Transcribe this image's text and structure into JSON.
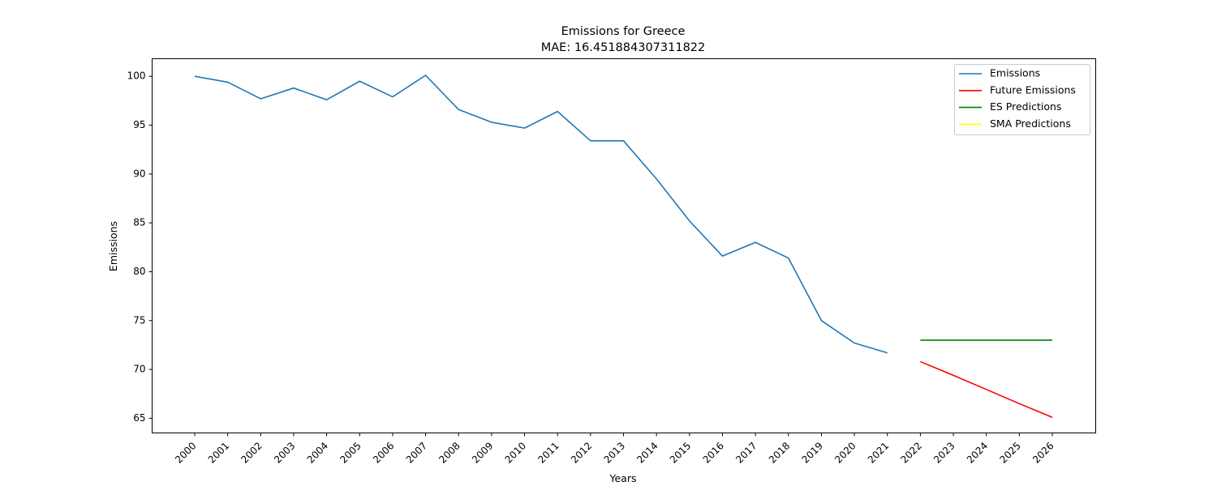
{
  "chart_data": {
    "type": "line",
    "title": "Emissions for Greece",
    "subtitle": "MAE: 16.451884307311822",
    "xlabel": "Years",
    "ylabel": "Emissions",
    "categories": [
      "2000",
      "2001",
      "2002",
      "2003",
      "2004",
      "2005",
      "2006",
      "2007",
      "2008",
      "2009",
      "2010",
      "2011",
      "2012",
      "2013",
      "2014",
      "2015",
      "2016",
      "2017",
      "2018",
      "2019",
      "2020",
      "2021",
      "2022",
      "2023",
      "2024",
      "2025",
      "2026"
    ],
    "ylim": [
      63.5,
      101.8
    ],
    "yticks": [
      65,
      70,
      75,
      80,
      85,
      90,
      95,
      100
    ],
    "grid": false,
    "legend_position": "top-right",
    "series": [
      {
        "name": "Emissions",
        "color": "#1f77b4",
        "x": [
          "2000",
          "2001",
          "2002",
          "2003",
          "2004",
          "2005",
          "2006",
          "2007",
          "2008",
          "2009",
          "2010",
          "2011",
          "2012",
          "2013",
          "2014",
          "2015",
          "2016",
          "2017",
          "2018",
          "2019",
          "2020",
          "2021"
        ],
        "values": [
          100.0,
          99.4,
          97.7,
          98.8,
          97.6,
          99.5,
          97.9,
          100.1,
          96.6,
          95.3,
          94.7,
          96.4,
          93.4,
          93.4,
          89.5,
          85.2,
          81.6,
          83.0,
          81.4,
          75.0,
          72.7,
          71.7
        ]
      },
      {
        "name": "Future Emissions",
        "color": "#ff0000",
        "x": [
          "2022",
          "2023",
          "2024",
          "2025",
          "2026"
        ],
        "values": [
          70.8,
          69.4,
          67.95,
          66.5,
          65.1
        ]
      },
      {
        "name": "ES Predictions",
        "color": "#008000",
        "x": [
          "2022",
          "2023",
          "2024",
          "2025",
          "2026"
        ],
        "values": [
          73.0,
          73.0,
          73.0,
          73.0,
          73.0
        ]
      },
      {
        "name": "SMA Predictions",
        "color": "#ffff00",
        "x": [],
        "values": []
      }
    ]
  }
}
